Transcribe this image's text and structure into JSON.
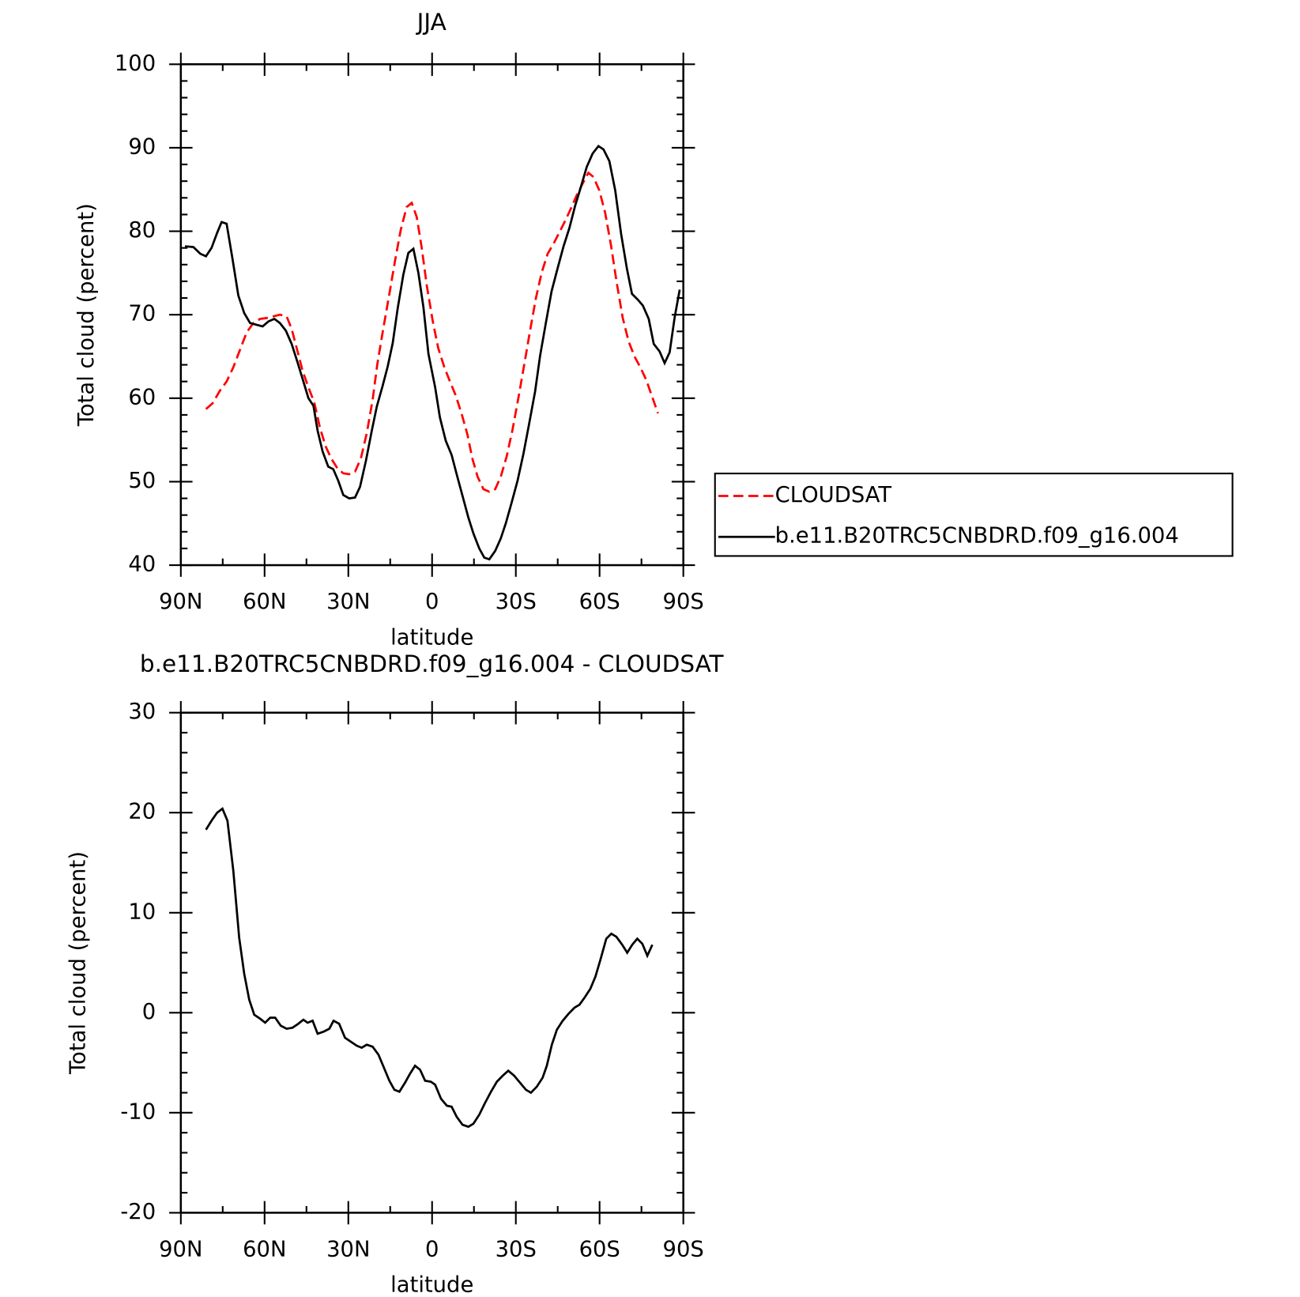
{
  "chart_data": [
    {
      "type": "line",
      "title": "JJA",
      "xlabel": "latitude",
      "ylabel": "Total cloud (percent)",
      "xlim": [
        90,
        -90
      ],
      "xticks": [
        {
          "value": 90,
          "label": "90N"
        },
        {
          "value": 60,
          "label": "60N"
        },
        {
          "value": 30,
          "label": "30N"
        },
        0,
        {
          "value": -30,
          "label": "30S"
        },
        {
          "value": -60,
          "label": "60S"
        },
        {
          "value": -90,
          "label": "90S"
        }
      ],
      "ylim": [
        40,
        100
      ],
      "yticks": [
        40,
        50,
        60,
        70,
        80,
        90,
        100
      ],
      "legend": "right",
      "series": [
        {
          "name": "CLOUDSAT",
          "color": "#ff0000",
          "linestyle": "dashed",
          "x": [
            81,
            78.6,
            76,
            73.6,
            71.2,
            68.8,
            66.4,
            64,
            61.6,
            59.3,
            56.9,
            54.5,
            52.1,
            50.3,
            48.5,
            46.4,
            44.3,
            42.2,
            40.2,
            38.1,
            36,
            33.9,
            31.8,
            29.7,
            27.6,
            25.5,
            23.4,
            21.3,
            19.6,
            17.5,
            15.4,
            13.3,
            11.2,
            9.1,
            7.3,
            5.5,
            3.7,
            1.9,
            -0.2,
            -2.2,
            -4.3,
            -6.4,
            -8.5,
            -10.6,
            -12.7,
            -14.4,
            -16.3,
            -18.4,
            -20.5,
            -22.6,
            -24.6,
            -26.7,
            -28.8,
            -30.9,
            -33,
            -35.1,
            -37.2,
            -39.3,
            -41.4,
            -43.5,
            -45.5,
            -47.6,
            -49.7,
            -51.8,
            -53.9,
            -56,
            -57.8,
            -59.9,
            -62,
            -64.1,
            -66.2,
            -68.3,
            -70.4,
            -72.5,
            -74.6,
            -76.7,
            -78.8,
            -80.9
          ],
          "values": [
            58.7,
            59.4,
            60.9,
            62.0,
            63.7,
            65.8,
            67.9,
            69.0,
            69.5,
            69.6,
            69.8,
            70.0,
            69.8,
            68.3,
            66.0,
            63.3,
            61.3,
            59.5,
            56.5,
            54.2,
            52.7,
            51.6,
            51.0,
            50.9,
            51.2,
            52.8,
            55.8,
            59.8,
            64.1,
            68.3,
            72.3,
            76.4,
            80.2,
            82.9,
            83.4,
            81.7,
            78.0,
            73.5,
            69.3,
            66.0,
            63.8,
            62.0,
            60.3,
            58.1,
            55.6,
            52.8,
            50.6,
            49.1,
            48.8,
            49.1,
            50.6,
            53.0,
            56.2,
            60.0,
            64.0,
            68.1,
            72.0,
            75.1,
            77.3,
            78.5,
            79.8,
            81.2,
            82.7,
            84.3,
            85.7,
            87.0,
            86.5,
            84.9,
            82.2,
            78.3,
            73.7,
            69.6,
            66.8,
            65.0,
            63.7,
            62.2,
            60.2,
            58.2
          ]
        },
        {
          "name": "b.e11.B20TRC5CNBDRD.f09_g16.004",
          "color": "#000000",
          "linestyle": "solid",
          "x": [
            88.5,
            85.5,
            83,
            81,
            79,
            77,
            75.4,
            73.6,
            71.5,
            69.4,
            67.3,
            65.2,
            63,
            60.7,
            58.6,
            56.5,
            54.5,
            52.4,
            50.3,
            48.2,
            46.1,
            44.3,
            42.5,
            41,
            39.2,
            37.2,
            35.4,
            33.6,
            31.8,
            29.7,
            27.6,
            25.8,
            23.7,
            21.6,
            19.8,
            17.7,
            15.9,
            14.1,
            12.3,
            10.3,
            8.5,
            6.7,
            4.9,
            3.1,
            1.3,
            -1.1,
            -2.8,
            -4.9,
            -7,
            -8.8,
            -10.9,
            -13,
            -14.8,
            -16.9,
            -18.7,
            -20.5,
            -22.6,
            -24.6,
            -26.4,
            -28.5,
            -30.6,
            -32.7,
            -34.8,
            -36.9,
            -38.7,
            -40.8,
            -42.8,
            -45,
            -47.1,
            -49.2,
            -51.2,
            -53.3,
            -55.4,
            -57.5,
            -59.6,
            -61.4,
            -63.5,
            -65.6,
            -67.7,
            -69.8,
            -71.6,
            -73.7,
            -75.5,
            -77.6,
            -79.4,
            -81.5,
            -83.3,
            -85.1,
            -86.9,
            -88.7
          ],
          "values": [
            78.2,
            78.1,
            77.3,
            77.0,
            78.0,
            79.8,
            81.1,
            80.9,
            76.7,
            72.3,
            70.2,
            69.0,
            68.8,
            68.6,
            69.2,
            69.5,
            69.0,
            68.1,
            66.5,
            64.3,
            62.0,
            60.0,
            59.1,
            56.1,
            53.6,
            51.8,
            51.5,
            50.1,
            48.4,
            48.0,
            48.1,
            49.4,
            52.5,
            56.1,
            59.0,
            61.5,
            63.8,
            66.6,
            70.8,
            74.8,
            77.4,
            77.9,
            75.0,
            70.9,
            65.3,
            61.3,
            57.7,
            54.9,
            53.2,
            50.9,
            48.3,
            45.7,
            43.8,
            42.0,
            40.9,
            40.7,
            41.7,
            43.2,
            45.0,
            47.5,
            50.1,
            53.3,
            57.0,
            60.8,
            65.1,
            69.1,
            72.8,
            75.6,
            78.2,
            80.4,
            83.0,
            85.3,
            87.7,
            89.3,
            90.2,
            89.8,
            88.4,
            84.9,
            79.7,
            75.5,
            72.5,
            71.8,
            71.1,
            69.5,
            66.5,
            65.6,
            64.2,
            65.5,
            69.7,
            73.0
          ]
        }
      ]
    },
    {
      "type": "line",
      "title": "b.e11.B20TRC5CNBDRD.f09_g16.004 - CLOUDSAT",
      "xlabel": "latitude",
      "ylabel": "Total cloud (percent)",
      "xlim": [
        90,
        -90
      ],
      "xticks": [
        {
          "value": 90,
          "label": "90N"
        },
        {
          "value": 60,
          "label": "60N"
        },
        {
          "value": 30,
          "label": "30N"
        },
        0,
        {
          "value": -30,
          "label": "30S"
        },
        {
          "value": -60,
          "label": "60S"
        },
        {
          "value": -90,
          "label": "90S"
        }
      ],
      "ylim": [
        -20,
        30
      ],
      "yticks": [
        -20,
        -10,
        0,
        10,
        20,
        30
      ],
      "series": [
        {
          "color": "#000000",
          "linestyle": "solid",
          "x": [
            81,
            79,
            77,
            75.1,
            73.3,
            71.2,
            69.1,
            67.3,
            65.5,
            63.7,
            61.6,
            59.8,
            58,
            56.2,
            54.2,
            52.1,
            50,
            47.9,
            46.1,
            44.6,
            42.8,
            41,
            38.9,
            36.8,
            35.3,
            33.3,
            31.2,
            29.1,
            27,
            25.2,
            23.4,
            21.3,
            19.2,
            17.4,
            15.3,
            13.5,
            11.7,
            9.7,
            7.9,
            6.1,
            4.3,
            2.5,
            0.4,
            -1.1,
            -3.2,
            -5.3,
            -7,
            -8.8,
            -10.9,
            -13,
            -14.8,
            -16.9,
            -19,
            -21.1,
            -23.2,
            -25.3,
            -27.3,
            -29.4,
            -31.5,
            -33.6,
            -35.4,
            -37.5,
            -39.6,
            -41.1,
            -42.9,
            -44.7,
            -46.8,
            -48.9,
            -51,
            -52.8,
            -54.6,
            -56.7,
            -58.5,
            -60.3,
            -62.4,
            -64.2,
            -66,
            -68.1,
            -69.9,
            -71.7,
            -73.5,
            -75.3,
            -77.1,
            -78.9
          ],
          "values": [
            18.3,
            19.2,
            20.0,
            20.4,
            19.2,
            14.2,
            7.5,
            3.9,
            1.3,
            -0.2,
            -0.6,
            -1.0,
            -0.5,
            -0.5,
            -1.3,
            -1.6,
            -1.5,
            -1.1,
            -0.7,
            -1.0,
            -0.8,
            -2.1,
            -1.9,
            -1.6,
            -0.8,
            -1.1,
            -2.5,
            -2.9,
            -3.3,
            -3.5,
            -3.2,
            -3.4,
            -4.2,
            -5.4,
            -6.8,
            -7.7,
            -7.9,
            -7.0,
            -6.1,
            -5.3,
            -5.7,
            -6.8,
            -6.9,
            -7.2,
            -8.6,
            -9.3,
            -9.4,
            -10.4,
            -11.2,
            -11.4,
            -11.1,
            -10.2,
            -9.0,
            -7.9,
            -6.9,
            -6.3,
            -5.8,
            -6.3,
            -7.0,
            -7.7,
            -8.0,
            -7.4,
            -6.5,
            -5.3,
            -3.2,
            -1.7,
            -0.8,
            -0.1,
            0.5,
            0.8,
            1.5,
            2.4,
            3.6,
            5.3,
            7.4,
            7.9,
            7.6,
            6.8,
            6.0,
            6.8,
            7.4,
            6.9,
            5.7,
            6.8
          ]
        }
      ]
    }
  ]
}
